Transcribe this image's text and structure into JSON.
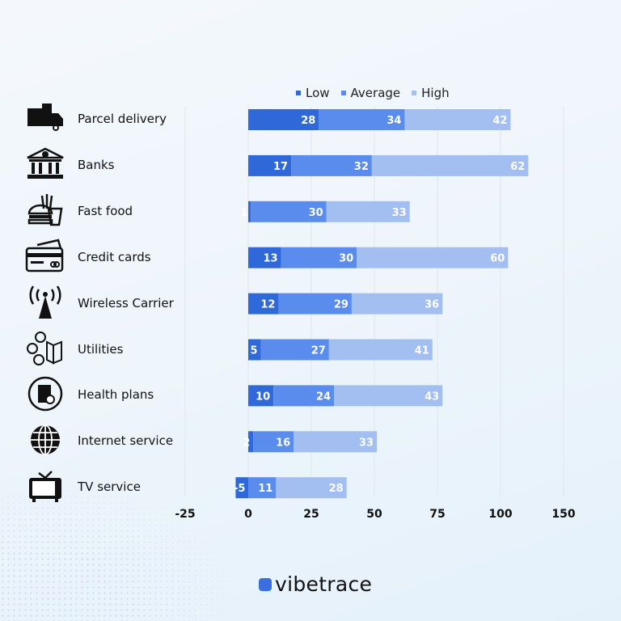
{
  "chart_data": {
    "type": "bar",
    "orientation": "horizontal",
    "stacked": true,
    "categories": [
      "Parcel delivery",
      "Banks",
      "Fast food",
      "Credit cards",
      "Wireless Carrier",
      "Utilities",
      "Health plans",
      "Internet service",
      "TV service"
    ],
    "series": [
      {
        "name": "Low",
        "color": "#2f68d8",
        "values": [
          28,
          17,
          1,
          13,
          12,
          5,
          10,
          2,
          -5
        ]
      },
      {
        "name": "Average",
        "color": "#5a8cee",
        "values": [
          34,
          32,
          30,
          30,
          29,
          27,
          24,
          16,
          11
        ]
      },
      {
        "name": "High",
        "color": "#a3bef0",
        "values": [
          42,
          62,
          33,
          60,
          36,
          41,
          43,
          33,
          28
        ]
      }
    ],
    "x_tick_labels": [
      "-25",
      "0",
      "25",
      "50",
      "75",
      "100",
      "150"
    ],
    "xlim": [
      -25,
      125
    ],
    "grid": true,
    "legend_position": "top",
    "icons": [
      "delivery-truck-icon",
      "bank-icon",
      "fast-food-icon",
      "credit-card-icon",
      "wireless-tower-icon",
      "utilities-icon",
      "health-plan-icon",
      "globe-icon",
      "tv-icon"
    ]
  },
  "brand": {
    "name": "vibetrace",
    "color": "#3a6fe0"
  }
}
